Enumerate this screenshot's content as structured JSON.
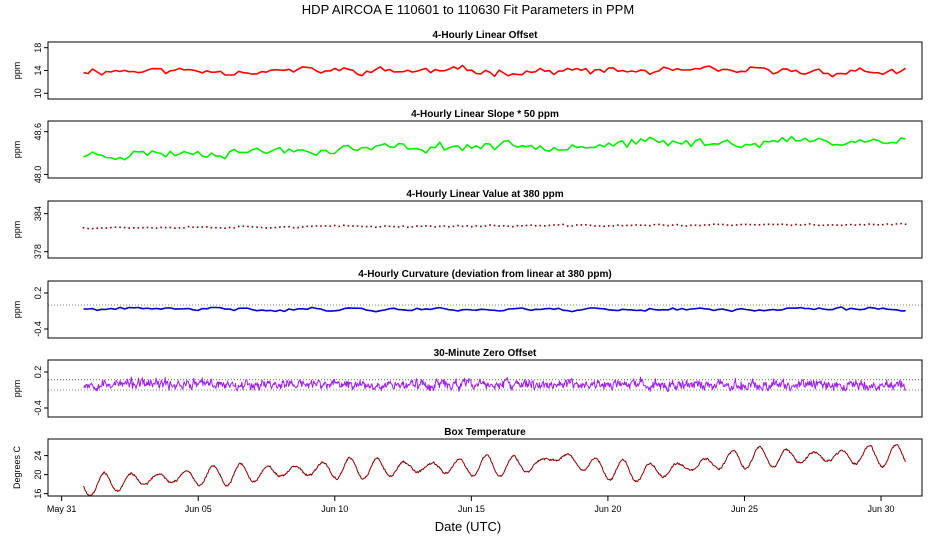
{
  "figure": {
    "title": "HDP   AIRCOA E   110601 to 110630   Fit Parameters in PPM",
    "xlabel": "Date (UTC)",
    "x_ticks": [
      "May 31",
      "Jun 05",
      "Jun 10",
      "Jun 15",
      "Jun 20",
      "Jun 25",
      "Jun 30"
    ]
  },
  "chart_data": [
    {
      "type": "line",
      "title": "4-Hourly Linear Offset",
      "ylabel": "ppm",
      "y_ticks": [
        "10",
        "14",
        "18"
      ],
      "ylim": [
        9,
        19
      ],
      "xlim": [
        -0.5,
        31.5
      ],
      "x_start": 0.8,
      "x_end": 30.9,
      "n_points": 181,
      "base": [
        [
          0,
          14.0
        ],
        [
          30,
          13.8
        ]
      ],
      "wiggle": 1.1,
      "seed": 11,
      "color": "#ff0000",
      "style": "line",
      "ref_lines": []
    },
    {
      "type": "line",
      "title": "4-Hourly Linear Slope * 50 ppm",
      "ylabel": "ppm",
      "y_ticks": [
        "48.0",
        "48.6"
      ],
      "ylim": [
        47.95,
        48.75
      ],
      "xlim": [
        -0.5,
        31.5
      ],
      "x_start": 0.8,
      "x_end": 30.9,
      "n_points": 181,
      "base": [
        [
          0,
          48.27
        ],
        [
          15,
          48.4
        ],
        [
          30,
          48.48
        ]
      ],
      "wiggle": 0.11,
      "seed": 23,
      "color": "#00ee00",
      "style": "line",
      "ref_lines": []
    },
    {
      "type": "line",
      "title": "4-Hourly Linear Value at 380 ppm",
      "ylabel": "ppm",
      "y_ticks": [
        "378",
        "384"
      ],
      "ylim": [
        377,
        386
      ],
      "xlim": [
        -0.5,
        31.5
      ],
      "x_start": 0.8,
      "x_end": 30.9,
      "n_points": 181,
      "base": [
        [
          0,
          381.8
        ],
        [
          30,
          382.3
        ]
      ],
      "wiggle": 0.25,
      "seed": 37,
      "color": "#8b0000",
      "style": "dots",
      "ref_lines": []
    },
    {
      "type": "line",
      "title": "4-Hourly Curvature (deviation from linear at 380 ppm)",
      "ylabel": "ppm",
      "y_ticks": [
        "-0.4",
        "0.2"
      ],
      "ylim": [
        -0.55,
        0.4
      ],
      "xlim": [
        -0.5,
        31.5
      ],
      "x_start": 0.8,
      "x_end": 30.9,
      "n_points": 181,
      "base": [
        [
          0,
          -0.07
        ],
        [
          30,
          -0.07
        ]
      ],
      "wiggle": 0.05,
      "seed": 41,
      "color": "#0000cc",
      "style": "line",
      "ref_lines": [
        0.0
      ]
    },
    {
      "type": "line",
      "title": "30-Minute Zero Offset",
      "ylabel": "ppm",
      "y_ticks": [
        "-0.4",
        "0.2"
      ],
      "ylim": [
        -0.55,
        0.4
      ],
      "xlim": [
        -0.5,
        31.5
      ],
      "x_start": 0.8,
      "x_end": 30.9,
      "n_points": 1440,
      "base": [
        [
          0,
          0.0
        ],
        [
          30,
          -0.02
        ]
      ],
      "wiggle": 0.13,
      "seed": 53,
      "color": "#a020f0",
      "style": "line",
      "ref_lines": [
        0.07,
        -0.1
      ]
    },
    {
      "type": "line",
      "title": "Box Temperature",
      "ylabel": "Degrees C",
      "y_ticks": [
        "16",
        "20",
        "24"
      ],
      "ylim": [
        15.5,
        27.5
      ],
      "xlim": [
        -0.5,
        31.5
      ],
      "x_start": 0.8,
      "x_end": 30.9,
      "n_points": 1440,
      "base": [
        [
          0,
          17.2
        ],
        [
          3,
          19.0
        ],
        [
          10,
          21.2
        ],
        [
          17.5,
          22.0
        ],
        [
          18,
          24.0
        ],
        [
          20,
          21.0
        ],
        [
          21.5,
          20.5
        ],
        [
          25,
          23.5
        ],
        [
          30,
          24.0
        ]
      ],
      "diurnal": 2.3,
      "wiggle": 0.35,
      "seed": 67,
      "color": "#8b0000",
      "style": "line",
      "ref_lines": []
    }
  ]
}
